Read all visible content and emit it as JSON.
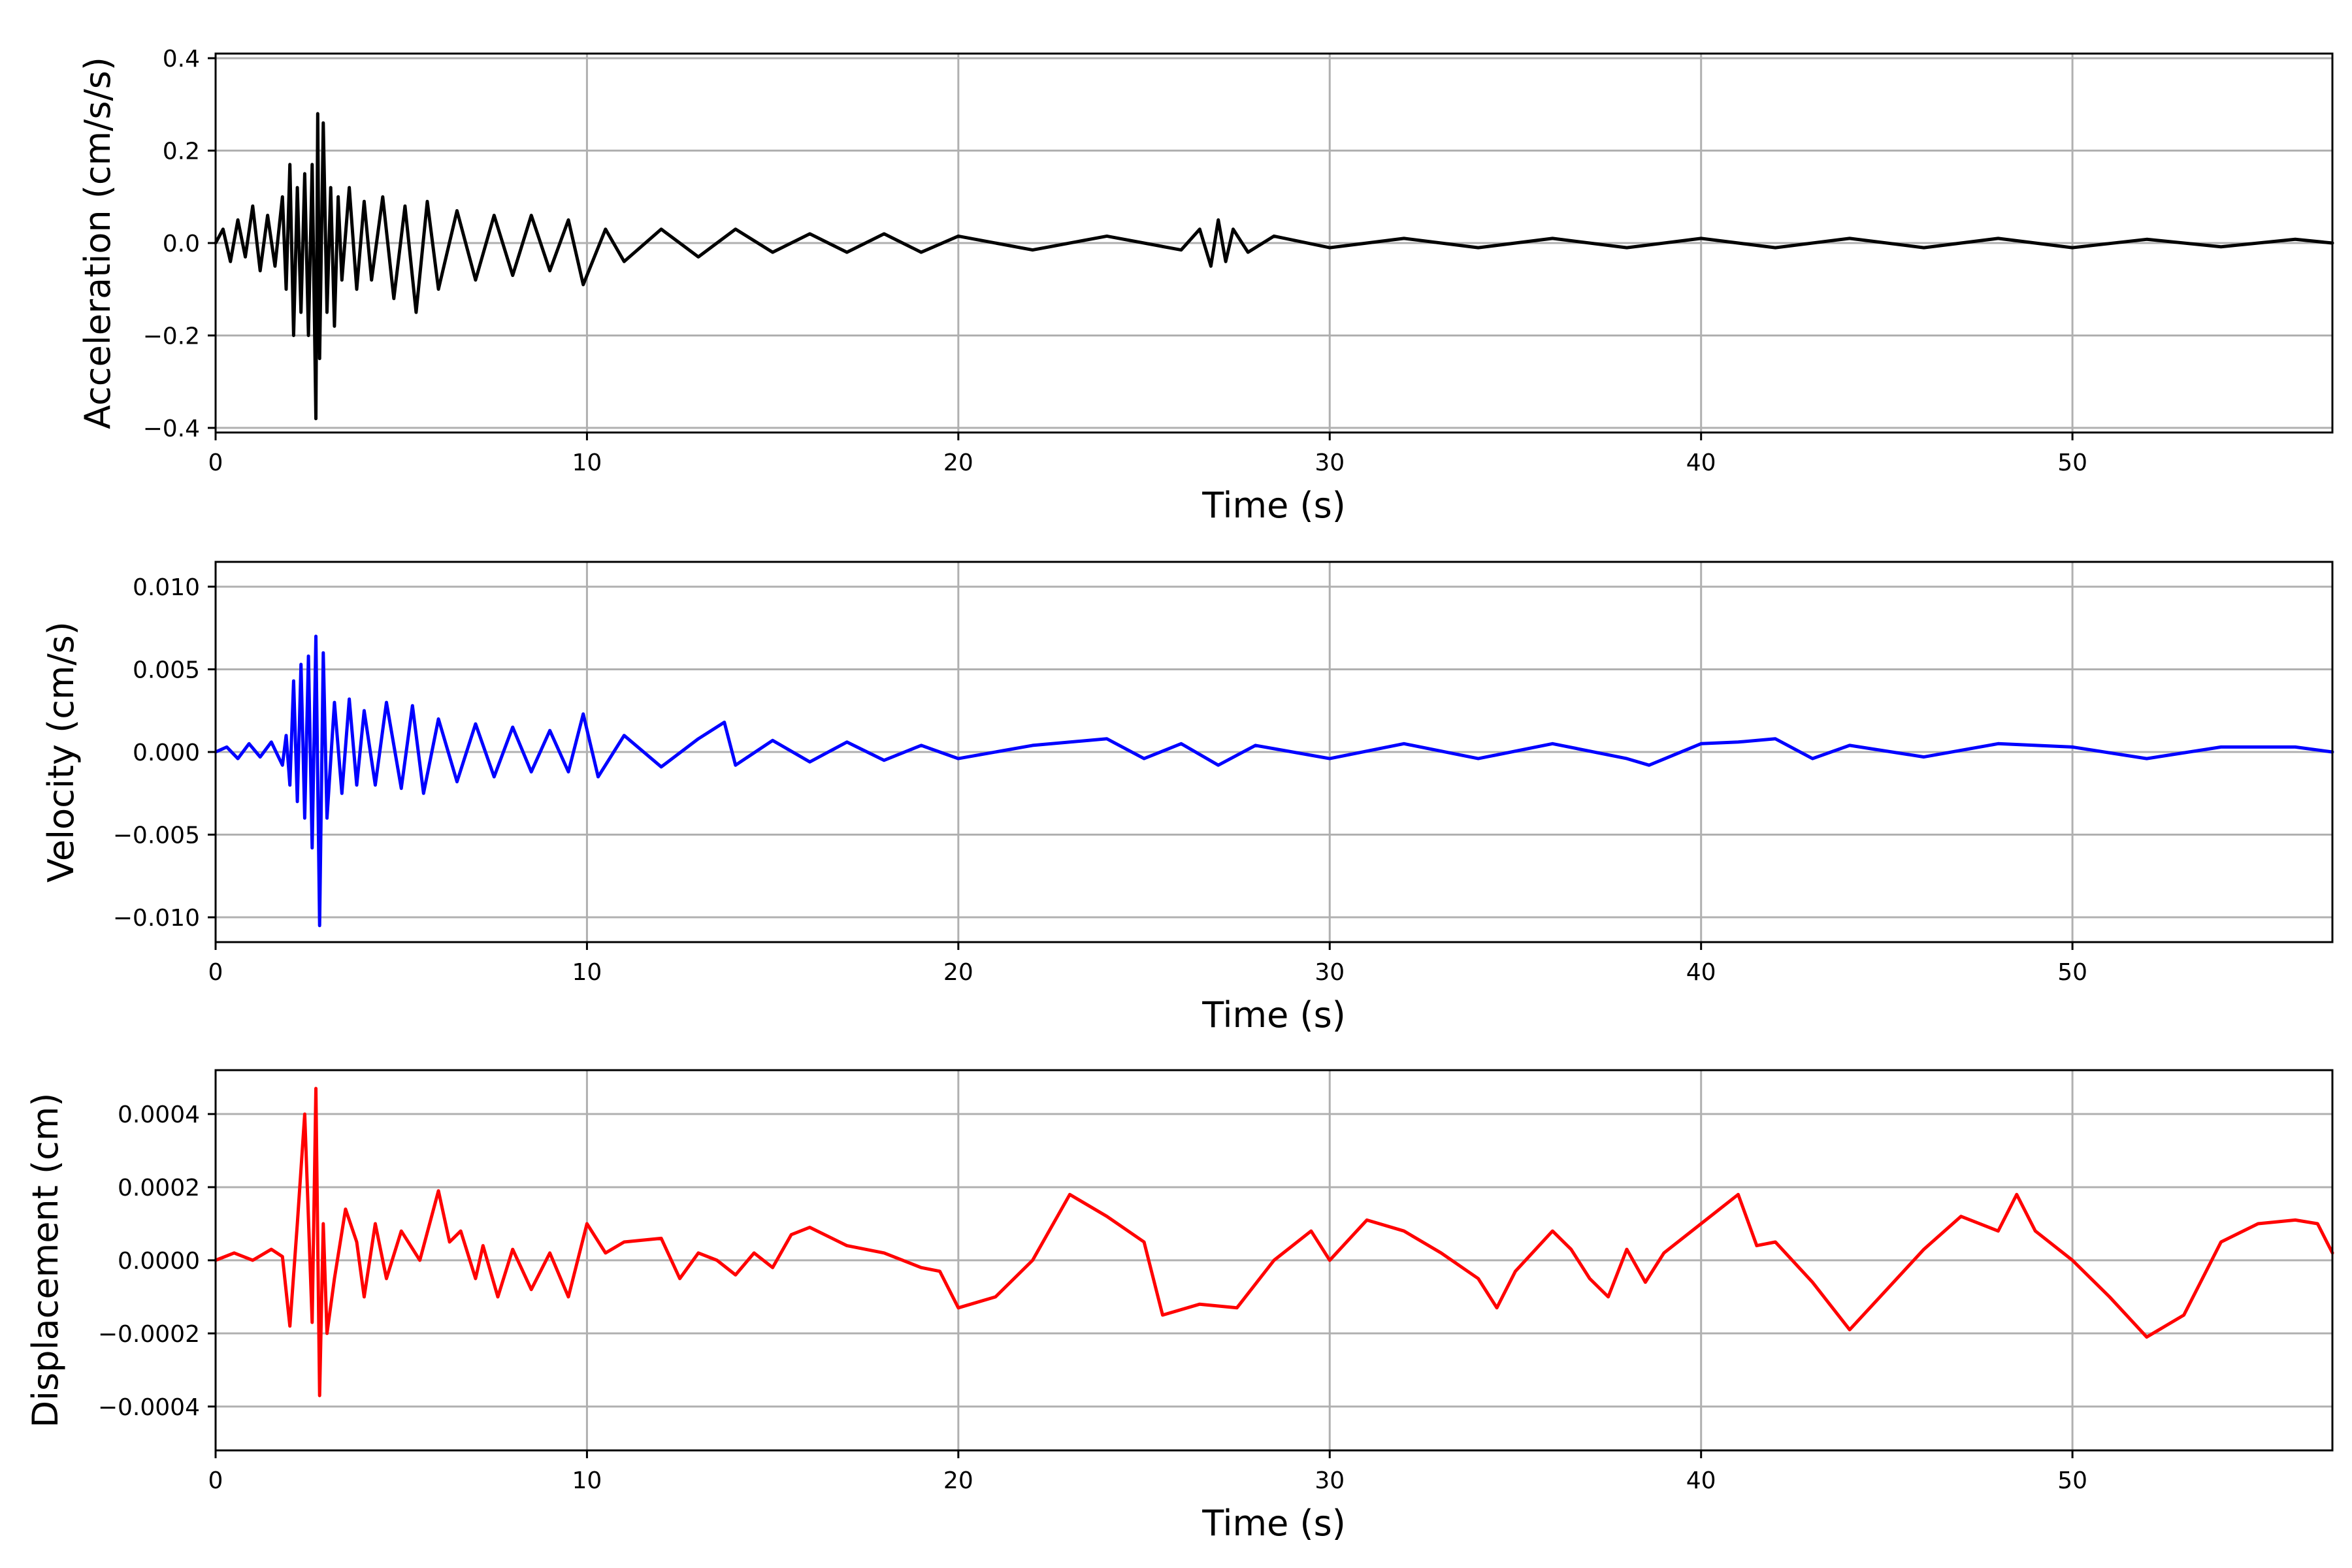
{
  "chart_data": [
    {
      "type": "line",
      "id": "acceleration",
      "xlabel": "Time (s)",
      "ylabel": "Acceleration (cm/s/s)",
      "xlim": [
        0,
        57
      ],
      "ylim": [
        -0.41,
        0.41
      ],
      "xticks": [
        0,
        10,
        20,
        30,
        40,
        50
      ],
      "xtick_labels": [
        "0",
        "10",
        "20",
        "30",
        "40",
        "50"
      ],
      "yticks": [
        -0.4,
        -0.2,
        0.0,
        0.2,
        0.4
      ],
      "ytick_labels": [
        "−0.4",
        "−0.2",
        "0.0",
        "0.2",
        "0.4"
      ],
      "grid": true,
      "color": "#000000",
      "series": [
        {
          "x": [
            0,
            0.2,
            0.4,
            0.6,
            0.8,
            1.0,
            1.2,
            1.4,
            1.6,
            1.8,
            1.9,
            2.0,
            2.1,
            2.2,
            2.3,
            2.4,
            2.5,
            2.6,
            2.7,
            2.75,
            2.8,
            2.9,
            3.0,
            3.1,
            3.2,
            3.3,
            3.4,
            3.6,
            3.8,
            4.0,
            4.2,
            4.5,
            4.8,
            5.1,
            5.4,
            5.7,
            6.0,
            6.5,
            7.0,
            7.5,
            8.0,
            8.5,
            9.0,
            9.5,
            9.9,
            10.5,
            11.0,
            12.0,
            13.0,
            14.0,
            15.0,
            16.0,
            17.0,
            18.0,
            19.0,
            20.0,
            22.0,
            24.0,
            26.0,
            26.5,
            26.8,
            27.0,
            27.2,
            27.4,
            27.8,
            28.5,
            30.0,
            32.0,
            34.0,
            36.0,
            38.0,
            40.0,
            42.0,
            44.0,
            46.0,
            48.0,
            50.0,
            52.0,
            54.0,
            56.0,
            57.0
          ],
          "y": [
            0.0,
            0.03,
            -0.04,
            0.05,
            -0.03,
            0.08,
            -0.06,
            0.06,
            -0.05,
            0.1,
            -0.1,
            0.17,
            -0.2,
            0.12,
            -0.15,
            0.15,
            -0.2,
            0.17,
            -0.38,
            0.28,
            -0.25,
            0.26,
            -0.15,
            0.12,
            -0.18,
            0.1,
            -0.08,
            0.12,
            -0.1,
            0.09,
            -0.08,
            0.1,
            -0.12,
            0.08,
            -0.15,
            0.09,
            -0.1,
            0.07,
            -0.08,
            0.06,
            -0.07,
            0.06,
            -0.06,
            0.05,
            -0.09,
            0.03,
            -0.04,
            0.03,
            -0.03,
            0.03,
            -0.02,
            0.02,
            -0.02,
            0.02,
            -0.02,
            0.015,
            -0.015,
            0.015,
            -0.015,
            0.03,
            -0.05,
            0.05,
            -0.04,
            0.03,
            -0.02,
            0.015,
            -0.01,
            0.01,
            -0.01,
            0.01,
            -0.01,
            0.01,
            -0.01,
            0.01,
            -0.01,
            0.01,
            -0.01,
            0.008,
            -0.008,
            0.008,
            0.0
          ]
        }
      ]
    },
    {
      "type": "line",
      "id": "velocity",
      "xlabel": "Time (s)",
      "ylabel": "Velocity (cm/s)",
      "xlim": [
        0,
        57
      ],
      "ylim": [
        -0.0115,
        0.0115
      ],
      "xticks": [
        0,
        10,
        20,
        30,
        40,
        50
      ],
      "xtick_labels": [
        "0",
        "10",
        "20",
        "30",
        "40",
        "50"
      ],
      "yticks": [
        -0.01,
        -0.005,
        0.0,
        0.005,
        0.01
      ],
      "ytick_labels": [
        "−0.010",
        "−0.005",
        "0.000",
        "0.005",
        "0.010"
      ],
      "grid": true,
      "color": "#0000ff",
      "series": [
        {
          "x": [
            0,
            0.3,
            0.6,
            0.9,
            1.2,
            1.5,
            1.8,
            1.9,
            2.0,
            2.1,
            2.2,
            2.3,
            2.4,
            2.5,
            2.6,
            2.7,
            2.8,
            2.9,
            3.0,
            3.2,
            3.4,
            3.6,
            3.8,
            4.0,
            4.3,
            4.6,
            5.0,
            5.3,
            5.6,
            6.0,
            6.5,
            7.0,
            7.5,
            8.0,
            8.5,
            9.0,
            9.5,
            9.9,
            10.3,
            11.0,
            12.0,
            13.0,
            13.7,
            14.0,
            15.0,
            16.0,
            17.0,
            18.0,
            19.0,
            20.0,
            22.0,
            24.0,
            25.0,
            26.0,
            27.0,
            28.0,
            30.0,
            32.0,
            34.0,
            36.0,
            38.0,
            38.6,
            40.0,
            41.0,
            42.0,
            43.0,
            44.0,
            46.0,
            48.0,
            50.0,
            52.0,
            54.0,
            56.0,
            57.0
          ],
          "y": [
            0.0,
            0.0003,
            -0.0004,
            0.0005,
            -0.0003,
            0.0006,
            -0.0008,
            0.001,
            -0.002,
            0.0043,
            -0.003,
            0.0053,
            -0.004,
            0.0058,
            -0.0058,
            0.007,
            -0.0105,
            0.006,
            -0.004,
            0.003,
            -0.0025,
            0.0032,
            -0.002,
            0.0025,
            -0.002,
            0.003,
            -0.0022,
            0.0028,
            -0.0025,
            0.002,
            -0.0018,
            0.0017,
            -0.0015,
            0.0015,
            -0.0012,
            0.0013,
            -0.0012,
            0.0023,
            -0.0015,
            0.001,
            -0.0009,
            0.0008,
            0.0018,
            -0.0008,
            0.0007,
            -0.0006,
            0.0006,
            -0.0005,
            0.0004,
            -0.0004,
            0.0004,
            0.0008,
            -0.0004,
            0.0005,
            -0.0008,
            0.0004,
            -0.0004,
            0.0005,
            -0.0004,
            0.0005,
            -0.0004,
            -0.0008,
            0.0005,
            0.0006,
            0.0008,
            -0.0004,
            0.0004,
            -0.0003,
            0.0005,
            0.0003,
            -0.0004,
            0.0003,
            0.0003,
            0.0
          ]
        }
      ]
    },
    {
      "type": "line",
      "id": "displacement",
      "xlabel": "Time (s)",
      "ylabel": "Displacement (cm)",
      "xlim": [
        0,
        57
      ],
      "ylim": [
        -0.00052,
        0.00052
      ],
      "xticks": [
        0,
        10,
        20,
        30,
        40,
        50
      ],
      "xtick_labels": [
        "0",
        "10",
        "20",
        "30",
        "40",
        "50"
      ],
      "yticks": [
        -0.0004,
        -0.0002,
        0.0,
        0.0002,
        0.0004
      ],
      "ytick_labels": [
        "−0.0004",
        "−0.0002",
        "0.0000",
        "0.0002",
        "0.0004"
      ],
      "grid": true,
      "color": "#ff0000",
      "series": [
        {
          "x": [
            0,
            0.5,
            1.0,
            1.5,
            1.8,
            2.0,
            2.2,
            2.4,
            2.6,
            2.7,
            2.8,
            2.9,
            3.0,
            3.2,
            3.5,
            3.8,
            4.0,
            4.3,
            4.6,
            5.0,
            5.5,
            6.0,
            6.3,
            6.6,
            7.0,
            7.2,
            7.6,
            8.0,
            8.5,
            9.0,
            9.5,
            10.0,
            10.5,
            11.0,
            12.0,
            12.5,
            13.0,
            13.5,
            14.0,
            14.5,
            15.0,
            15.5,
            16.0,
            17.0,
            18.0,
            19.0,
            19.5,
            20.0,
            21.0,
            22.0,
            23.0,
            24.0,
            25.0,
            25.5,
            26.5,
            27.5,
            28.5,
            29.5,
            30.0,
            31.0,
            32.0,
            33.0,
            34.0,
            34.5,
            35.0,
            36.0,
            36.5,
            37.0,
            37.5,
            38.0,
            38.5,
            39.0,
            40.0,
            41.0,
            41.5,
            42.0,
            43.0,
            44.0,
            45.0,
            46.0,
            47.0,
            48.0,
            48.5,
            49.0,
            50.0,
            51.0,
            52.0,
            53.0,
            54.0,
            55.0,
            56.0,
            56.6,
            57.0
          ],
          "y": [
            0.0,
            2e-05,
            0.0,
            3e-05,
            1e-05,
            -0.00018,
            0.0001,
            0.0004,
            -0.00017,
            0.00047,
            -0.00037,
            0.0001,
            -0.0002,
            -5e-05,
            0.00014,
            5e-05,
            -0.0001,
            0.0001,
            -5e-05,
            8e-05,
            0.0,
            0.00019,
            5e-05,
            8e-05,
            -5e-05,
            4e-05,
            -0.0001,
            3e-05,
            -8e-05,
            2e-05,
            -0.0001,
            0.0001,
            2e-05,
            5e-05,
            6e-05,
            -5e-05,
            2e-05,
            0.0,
            -4e-05,
            2e-05,
            -2e-05,
            7e-05,
            9e-05,
            4e-05,
            2e-05,
            -2e-05,
            -3e-05,
            -0.00013,
            -0.0001,
            0.0,
            0.00018,
            0.00012,
            5e-05,
            -0.00015,
            -0.00012,
            -0.00013,
            0.0,
            8e-05,
            0.0,
            0.00011,
            8e-05,
            2e-05,
            -5e-05,
            -0.00013,
            -3e-05,
            8e-05,
            3e-05,
            -5e-05,
            -0.0001,
            3e-05,
            -6e-05,
            2e-05,
            0.0001,
            0.00018,
            4e-05,
            5e-05,
            -6e-05,
            -0.00019,
            -8e-05,
            3e-05,
            0.00012,
            8e-05,
            0.00018,
            8e-05,
            0.0,
            -0.0001,
            -0.00021,
            -0.00015,
            5e-05,
            0.0001,
            0.00011,
            0.0001,
            2e-05
          ]
        }
      ]
    }
  ]
}
